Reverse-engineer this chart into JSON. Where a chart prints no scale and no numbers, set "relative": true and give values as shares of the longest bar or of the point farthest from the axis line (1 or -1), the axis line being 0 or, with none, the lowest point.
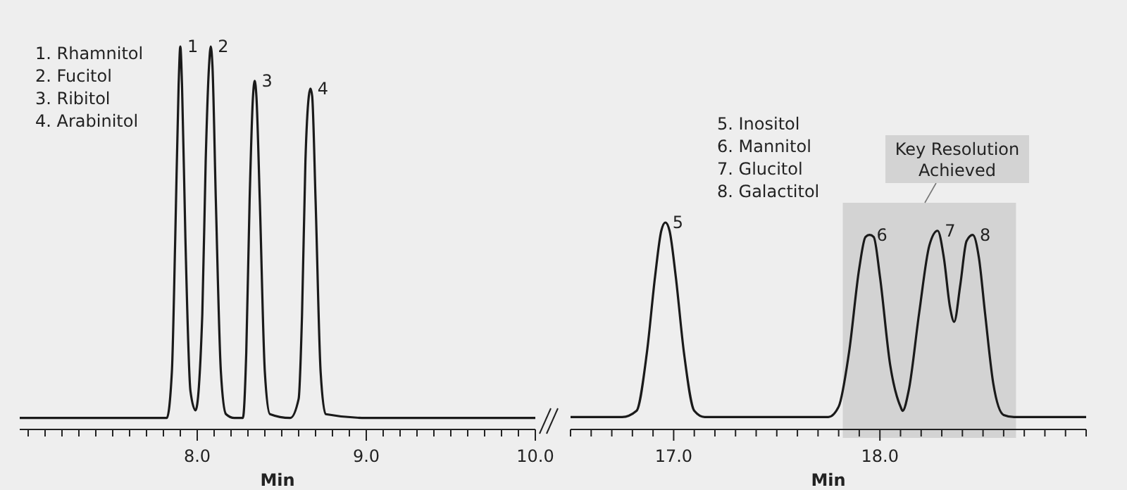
{
  "chart_data": [
    {
      "type": "line",
      "relative": true,
      "xlabel": "Min",
      "xlim": [
        6.95,
        10.0
      ],
      "xticks": [
        {
          "value": 7.0,
          "label": null
        },
        {
          "value": 7.1,
          "label": null
        },
        {
          "value": 7.2,
          "label": null
        },
        {
          "value": 7.3,
          "label": null
        },
        {
          "value": 7.4,
          "label": null
        },
        {
          "value": 7.5,
          "label": null
        },
        {
          "value": 7.6,
          "label": null
        },
        {
          "value": 7.7,
          "label": null
        },
        {
          "value": 7.8,
          "label": null
        },
        {
          "value": 7.9,
          "label": null
        },
        {
          "value": 8.0,
          "label": "8.0"
        },
        {
          "value": 8.1,
          "label": null
        },
        {
          "value": 8.2,
          "label": null
        },
        {
          "value": 8.3,
          "label": null
        },
        {
          "value": 8.4,
          "label": null
        },
        {
          "value": 8.5,
          "label": null
        },
        {
          "value": 8.6,
          "label": null
        },
        {
          "value": 8.7,
          "label": null
        },
        {
          "value": 8.8,
          "label": null
        },
        {
          "value": 8.9,
          "label": null
        },
        {
          "value": 9.0,
          "label": "9.0"
        },
        {
          "value": 9.1,
          "label": null
        },
        {
          "value": 9.2,
          "label": null
        },
        {
          "value": 9.3,
          "label": null
        },
        {
          "value": 9.4,
          "label": null
        },
        {
          "value": 9.5,
          "label": null
        },
        {
          "value": 9.6,
          "label": null
        },
        {
          "value": 9.7,
          "label": null
        },
        {
          "value": 9.8,
          "label": null
        },
        {
          "value": 9.9,
          "label": null
        },
        {
          "value": 10.0,
          "label": "10.0"
        }
      ],
      "series": [
        {
          "color": "#1a1a1a",
          "x": [
            6.95,
            7.3,
            7.7,
            7.82,
            7.85,
            7.87,
            7.89,
            7.9,
            7.91,
            7.93,
            7.96,
            7.99,
            8.03,
            8.05,
            8.07,
            8.08,
            8.09,
            8.11,
            8.14,
            8.17,
            8.22,
            8.27,
            8.29,
            8.31,
            8.33,
            8.34,
            8.35,
            8.37,
            8.4,
            8.43,
            8.55,
            8.6,
            8.62,
            8.64,
            8.66,
            8.67,
            8.68,
            8.7,
            8.73,
            8.76,
            9.0,
            9.5,
            10.0
          ],
          "values": [
            0.03,
            0.03,
            0.03,
            0.03,
            0.15,
            0.5,
            0.9,
            1.0,
            0.9,
            0.5,
            0.1,
            0.05,
            0.3,
            0.7,
            0.95,
            1.0,
            0.95,
            0.6,
            0.15,
            0.04,
            0.03,
            0.03,
            0.2,
            0.6,
            0.87,
            0.91,
            0.87,
            0.6,
            0.15,
            0.04,
            0.03,
            0.08,
            0.3,
            0.7,
            0.87,
            0.89,
            0.87,
            0.6,
            0.15,
            0.04,
            0.03,
            0.03,
            0.03
          ]
        }
      ],
      "annotations": [
        "1. Rhamnitol",
        "2. Fucitol",
        "3. Ribitol",
        "4. Arabinitol",
        {
          "text": "1",
          "x": 7.9,
          "y": 1.0
        },
        {
          "text": "2",
          "x": 8.08,
          "y": 1.0
        },
        {
          "text": "3",
          "x": 8.34,
          "y": 0.91
        },
        {
          "text": "4",
          "x": 8.67,
          "y": 0.89
        }
      ]
    },
    {
      "type": "line",
      "relative": true,
      "xlabel": "Min",
      "xlim": [
        16.5,
        19.0
      ],
      "xticks": [
        {
          "value": 16.5,
          "label": null
        },
        {
          "value": 16.6,
          "label": null
        },
        {
          "value": 16.7,
          "label": null
        },
        {
          "value": 16.8,
          "label": null
        },
        {
          "value": 16.9,
          "label": null
        },
        {
          "value": 17.0,
          "label": "17.0"
        },
        {
          "value": 17.1,
          "label": null
        },
        {
          "value": 17.2,
          "label": null
        },
        {
          "value": 17.3,
          "label": null
        },
        {
          "value": 17.4,
          "label": null
        },
        {
          "value": 17.5,
          "label": null
        },
        {
          "value": 17.6,
          "label": null
        },
        {
          "value": 17.7,
          "label": null
        },
        {
          "value": 17.8,
          "label": null
        },
        {
          "value": 17.9,
          "label": null
        },
        {
          "value": 18.0,
          "label": "18.0"
        },
        {
          "value": 18.1,
          "label": null
        },
        {
          "value": 18.2,
          "label": null
        },
        {
          "value": 18.3,
          "label": null
        },
        {
          "value": 18.4,
          "label": null
        },
        {
          "value": 18.5,
          "label": null
        },
        {
          "value": 18.6,
          "label": null
        },
        {
          "value": 18.7,
          "label": null
        },
        {
          "value": 18.8,
          "label": null
        },
        {
          "value": 18.9,
          "label": null
        },
        {
          "value": 19.0,
          "label": null
        }
      ],
      "series": [
        {
          "color": "#1a1a1a",
          "x": [
            16.5,
            16.75,
            16.82,
            16.87,
            16.91,
            16.94,
            16.96,
            16.98,
            17.01,
            17.05,
            17.1,
            17.15,
            17.6,
            17.75,
            17.8,
            17.85,
            17.9,
            17.93,
            17.95,
            17.97,
            18.0,
            18.05,
            18.1,
            18.11,
            18.14,
            18.19,
            18.24,
            18.28,
            18.31,
            18.34,
            18.36,
            18.39,
            18.42,
            18.45,
            18.48,
            18.51,
            18.55,
            18.6,
            18.65,
            19.0
          ],
          "values": [
            0.06,
            0.06,
            0.09,
            0.37,
            0.74,
            0.96,
            1.0,
            0.96,
            0.74,
            0.37,
            0.09,
            0.06,
            0.06,
            0.06,
            0.11,
            0.37,
            0.78,
            0.93,
            0.94,
            0.93,
            0.74,
            0.31,
            0.11,
            0.09,
            0.19,
            0.56,
            0.89,
            0.96,
            0.83,
            0.59,
            0.52,
            0.7,
            0.91,
            0.94,
            0.83,
            0.56,
            0.22,
            0.07,
            0.06,
            0.06
          ]
        }
      ],
      "bands": [
        {
          "axis": "x",
          "from": 17.82,
          "to": 18.66,
          "label": "Key Resolution Achieved",
          "color": "#d3d3d3"
        }
      ],
      "annotations": [
        "5. Inositol",
        "6. Mannitol",
        "7. Glucitol",
        "8. Galactitol",
        {
          "text": "5",
          "x": 16.96,
          "y": 1.0
        },
        {
          "text": "6",
          "x": 17.95,
          "y": 0.94
        },
        {
          "text": "7",
          "x": 18.28,
          "y": 0.96
        },
        {
          "text": "8",
          "x": 18.45,
          "y": 0.94
        }
      ]
    }
  ]
}
